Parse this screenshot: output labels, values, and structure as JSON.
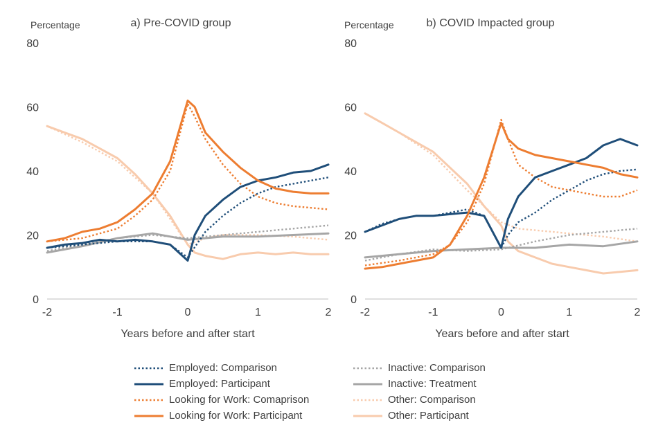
{
  "chart_data": [
    {
      "type": "line",
      "title": "a) Pre-COVID group",
      "ylabel": "Percentage",
      "xlabel": "Years before and after start",
      "xlim": [
        -2,
        2
      ],
      "ylim": [
        0,
        80
      ],
      "xticks": [
        "-2",
        "-1",
        "0",
        "1",
        "2"
      ],
      "yticks": [
        "0",
        "20",
        "40",
        "60",
        "80"
      ],
      "grid": false,
      "series": [
        {
          "name": "Employed: Comparison",
          "color": "#1f4e79",
          "dash": "dotted",
          "x": [
            -2,
            -1.5,
            -1,
            -0.5,
            -0.25,
            0,
            0.25,
            0.5,
            0.75,
            1,
            1.25,
            1.5,
            1.75,
            2
          ],
          "y": [
            16,
            17,
            18,
            18,
            17,
            13,
            21,
            26,
            30,
            33,
            35,
            36,
            37,
            38
          ]
        },
        {
          "name": "Employed: Participant",
          "color": "#1f4e79",
          "dash": "solid",
          "x": [
            -2,
            -1.75,
            -1.5,
            -1.25,
            -1,
            -0.75,
            -0.5,
            -0.25,
            0,
            0.1,
            0.25,
            0.5,
            0.75,
            1,
            1.25,
            1.5,
            1.75,
            2
          ],
          "y": [
            16,
            17,
            17.5,
            18.5,
            18,
            18.5,
            18,
            17,
            12,
            20,
            26,
            31,
            35,
            37,
            38,
            39.5,
            40,
            42
          ]
        },
        {
          "name": "Looking for Work: Comaprison",
          "color": "#ed7d31",
          "dash": "dotted",
          "x": [
            -2,
            -1.5,
            -1,
            -0.75,
            -0.5,
            -0.25,
            0,
            0.1,
            0.25,
            0.5,
            0.75,
            1,
            1.25,
            1.5,
            1.75,
            2
          ],
          "y": [
            18,
            19,
            22,
            26,
            31,
            40,
            61,
            57,
            50,
            42,
            36,
            32,
            30,
            29,
            28.5,
            28
          ]
        },
        {
          "name": "Looking for Work: Participant",
          "color": "#ed7d31",
          "dash": "solid",
          "x": [
            -2,
            -1.75,
            -1.5,
            -1.25,
            -1,
            -0.75,
            -0.5,
            -0.25,
            0,
            0.1,
            0.25,
            0.5,
            0.75,
            1,
            1.25,
            1.5,
            1.75,
            2
          ],
          "y": [
            18,
            19,
            21,
            22,
            24,
            28,
            33,
            43,
            62,
            60,
            52,
            46,
            41,
            37,
            34.5,
            33.5,
            33,
            33
          ]
        },
        {
          "name": "Inactive: Comparison",
          "color": "#a6a6a6",
          "dash": "dotted",
          "x": [
            -2,
            -1.5,
            -1,
            -0.5,
            0,
            0.5,
            1,
            1.5,
            2
          ],
          "y": [
            15,
            17,
            19,
            20,
            19,
            20,
            21,
            22,
            23
          ]
        },
        {
          "name": "Inactive: Treatment",
          "color": "#a6a6a6",
          "dash": "solid",
          "x": [
            -2,
            -1.5,
            -1,
            -0.5,
            0,
            0.5,
            1,
            1.5,
            2
          ],
          "y": [
            14.5,
            16.5,
            19,
            20.5,
            18.5,
            19.5,
            19.5,
            20,
            20.5
          ]
        },
        {
          "name": "Other: Comparison",
          "color": "#f8cbad",
          "dash": "dotted",
          "x": [
            -2,
            -1.5,
            -1,
            -0.5,
            0,
            0.25,
            0.5,
            1,
            1.5,
            2
          ],
          "y": [
            54,
            49,
            43,
            33,
            17,
            19,
            20,
            20,
            19.5,
            18.5
          ]
        },
        {
          "name": "Other: Participant",
          "color": "#f8cbad",
          "dash": "solid",
          "x": [
            -2,
            -1.75,
            -1.5,
            -1.25,
            -1,
            -0.75,
            -0.5,
            -0.25,
            0,
            0.1,
            0.25,
            0.5,
            0.75,
            1,
            1.25,
            1.5,
            1.75,
            2
          ],
          "y": [
            54,
            52,
            50,
            47,
            44,
            39,
            33,
            26,
            17,
            14.5,
            13.5,
            12.5,
            14,
            14.5,
            14,
            14.5,
            14,
            14
          ]
        }
      ]
    },
    {
      "type": "line",
      "title": "b) COVID Impacted group",
      "ylabel": "Percentage",
      "xlabel": "Years before and after start",
      "xlim": [
        -2,
        2
      ],
      "ylim": [
        0,
        80
      ],
      "xticks": [
        "-2",
        "-1",
        "0",
        "1",
        "2"
      ],
      "yticks": [
        "0",
        "20",
        "40",
        "60",
        "80"
      ],
      "grid": false,
      "series": [
        {
          "name": "Employed: Comparison",
          "color": "#1f4e79",
          "dash": "dotted",
          "x": [
            -2,
            -1.75,
            -1.5,
            -1.25,
            -1,
            -0.75,
            -0.5,
            -0.25,
            0,
            0.1,
            0.25,
            0.5,
            0.75,
            1,
            1.25,
            1.5,
            1.75,
            2
          ],
          "y": [
            21,
            23.5,
            25,
            26,
            26,
            27,
            28,
            26,
            16,
            20,
            24,
            27,
            31,
            34,
            37,
            39,
            40,
            40.5
          ]
        },
        {
          "name": "Employed: Participant",
          "color": "#1f4e79",
          "dash": "solid",
          "x": [
            -2,
            -1.75,
            -1.5,
            -1.25,
            -1,
            -0.75,
            -0.5,
            -0.25,
            0,
            0.1,
            0.25,
            0.5,
            0.75,
            1,
            1.25,
            1.5,
            1.75,
            2
          ],
          "y": [
            21,
            23,
            25,
            26,
            26,
            26.5,
            27,
            26,
            16,
            25,
            32,
            38,
            40,
            42,
            44,
            48,
            50,
            48
          ]
        },
        {
          "name": "Looking for Work: Comaprison",
          "color": "#ed7d31",
          "dash": "dotted",
          "x": [
            -2,
            -1.5,
            -1,
            -0.75,
            -0.5,
            -0.25,
            0,
            0.1,
            0.25,
            0.5,
            0.75,
            1,
            1.25,
            1.5,
            1.75,
            2
          ],
          "y": [
            10.5,
            12,
            14,
            17,
            24,
            36,
            56,
            50,
            42,
            38,
            35,
            34,
            33,
            32,
            32,
            34
          ]
        },
        {
          "name": "Looking for Work: Participant",
          "color": "#ed7d31",
          "dash": "solid",
          "x": [
            -2,
            -1.75,
            -1.5,
            -1.25,
            -1,
            -0.75,
            -0.5,
            -0.25,
            0,
            0.1,
            0.25,
            0.5,
            0.75,
            1,
            1.25,
            1.5,
            1.75,
            2
          ],
          "y": [
            9.5,
            10,
            11,
            12,
            13,
            17,
            26,
            38,
            55,
            50,
            47,
            45,
            44,
            43,
            42,
            41,
            39,
            38
          ]
        },
        {
          "name": "Inactive: Comparison",
          "color": "#a6a6a6",
          "dash": "dotted",
          "x": [
            -2,
            -1.5,
            -1,
            -0.5,
            0,
            0.5,
            1,
            1.5,
            2
          ],
          "y": [
            12,
            14,
            15.5,
            15,
            15.5,
            18,
            20,
            21,
            22
          ]
        },
        {
          "name": "Inactive: Treatment",
          "color": "#a6a6a6",
          "dash": "solid",
          "x": [
            -2,
            -1.5,
            -1,
            -0.5,
            0,
            0.5,
            1,
            1.5,
            2
          ],
          "y": [
            13,
            14,
            15,
            15.5,
            16,
            16,
            17,
            16.5,
            18
          ]
        },
        {
          "name": "Other: Comparison",
          "color": "#f8cbad",
          "dash": "dotted",
          "x": [
            -2,
            -1.5,
            -1,
            -0.5,
            0,
            0.25,
            0.5,
            1,
            1.5,
            2
          ],
          "y": [
            58,
            52,
            45,
            34,
            24,
            22,
            21.5,
            20.5,
            19.5,
            18
          ]
        },
        {
          "name": "Other: Participant",
          "color": "#f8cbad",
          "dash": "solid",
          "x": [
            -2,
            -1.75,
            -1.5,
            -1.25,
            -1,
            -0.75,
            -0.5,
            -0.25,
            0,
            0.1,
            0.25,
            0.5,
            0.75,
            1,
            1.25,
            1.5,
            1.75,
            2
          ],
          "y": [
            58,
            55,
            52,
            49,
            46,
            41,
            36,
            29,
            23,
            18,
            15,
            13,
            11,
            10,
            9,
            8,
            8.5,
            9
          ]
        }
      ]
    }
  ]
}
